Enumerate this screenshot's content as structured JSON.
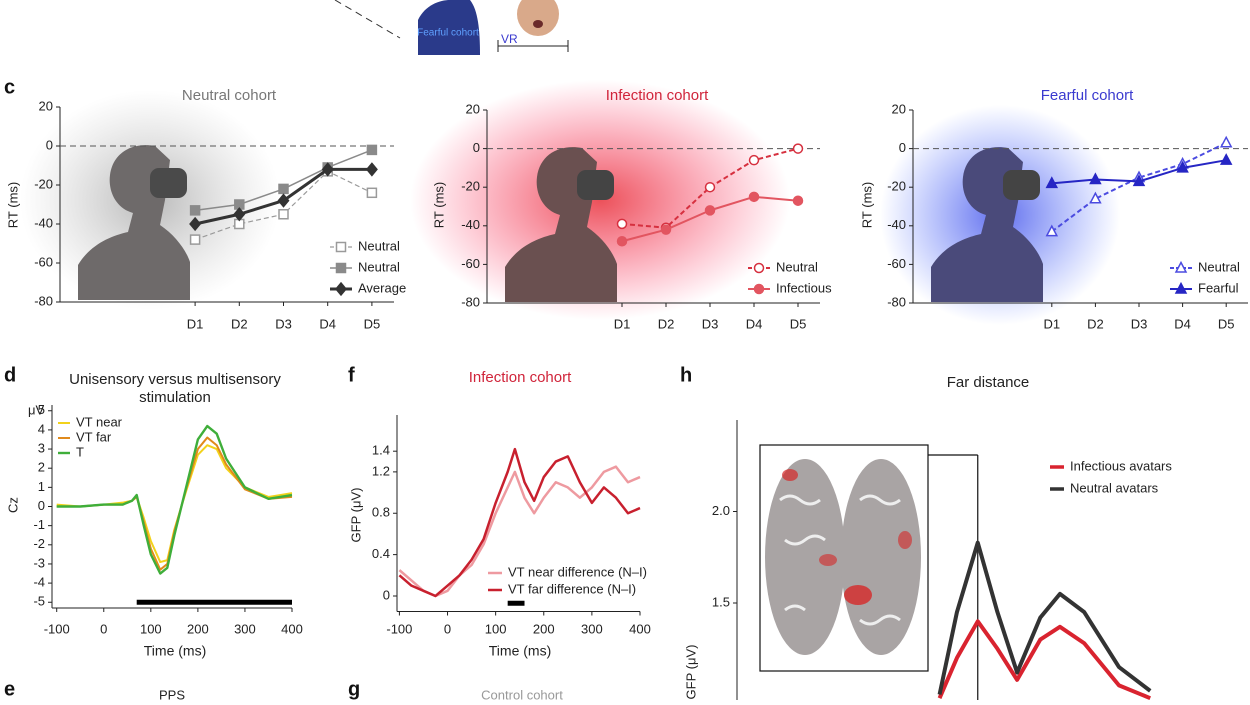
{
  "figure": {
    "letters": [
      "c",
      "d",
      "f",
      "h",
      "e",
      "g"
    ],
    "top_label": "Fearful cohort",
    "vr_label": "VR",
    "bottom_titles": [
      "PPS",
      "Control cohort"
    ]
  },
  "chart_data": [
    {
      "type": "line",
      "title": "Neutral cohort",
      "title_color": "#777777",
      "ylabel": "RT (ms)",
      "categories": [
        "D1",
        "D2",
        "D3",
        "D4",
        "D5"
      ],
      "ylim": [
        -80,
        20
      ],
      "yticks": [
        -80,
        -60,
        -40,
        -20,
        0,
        20
      ],
      "hline": 0,
      "legend": "lower right",
      "series": [
        {
          "name": "Neutral",
          "color": "#9a9a9a",
          "dash": true,
          "marker": "square-open",
          "width": 1.2,
          "values": [
            -48,
            -40,
            -35,
            -13,
            -24
          ]
        },
        {
          "name": "Neutral",
          "color": "#8a8a8a",
          "dash": false,
          "marker": "square",
          "width": 1.5,
          "values": [
            -33,
            -30,
            -22,
            -11,
            -2
          ]
        },
        {
          "name": "Average",
          "color": "#333333",
          "dash": false,
          "marker": "diamond",
          "width": 3,
          "values": [
            -40,
            -35,
            -28,
            -12,
            -12
          ]
        }
      ]
    },
    {
      "type": "line",
      "title": "Infection cohort",
      "title_color": "#d0243a",
      "ylabel": "RT (ms)",
      "categories": [
        "D1",
        "D2",
        "D3",
        "D4",
        "D5"
      ],
      "ylim": [
        -80,
        20
      ],
      "yticks": [
        -80,
        -60,
        -40,
        -20,
        0,
        20
      ],
      "hline": 0,
      "legend": "lower right",
      "series": [
        {
          "name": "Neutral",
          "color": "#d6303f",
          "dash": true,
          "marker": "circle-open",
          "width": 2,
          "values": [
            -39,
            -41,
            -20,
            -6,
            0
          ]
        },
        {
          "name": "Infectious",
          "color": "#e25560",
          "dash": false,
          "marker": "circle",
          "width": 2,
          "values": [
            -48,
            -42,
            -32,
            -25,
            -27
          ]
        }
      ]
    },
    {
      "type": "line",
      "title": "Fearful cohort",
      "title_color": "#3a3acf",
      "ylabel": "RT (ms)",
      "categories": [
        "D1",
        "D2",
        "D3",
        "D4",
        "D5"
      ],
      "ylim": [
        -80,
        20
      ],
      "yticks": [
        -80,
        -60,
        -40,
        -20,
        0,
        20
      ],
      "hline": 0,
      "legend": "lower right",
      "series": [
        {
          "name": "Neutral",
          "color": "#4b4be0",
          "dash": true,
          "marker": "triangle-open",
          "width": 2,
          "values": [
            -43,
            -26,
            -15,
            -8,
            3
          ]
        },
        {
          "name": "Fearful",
          "color": "#2626c4",
          "dash": false,
          "marker": "triangle",
          "width": 2,
          "values": [
            -18,
            -16,
            -17,
            -10,
            -6
          ]
        }
      ]
    },
    {
      "type": "line",
      "title": [
        "Unisensory versus multisensory",
        "stimulation"
      ],
      "title_color": "#222222",
      "ylabel": "Cz",
      "yunit": "μV",
      "xlabel": "Time (ms)",
      "x": [
        -100,
        -50,
        0,
        40,
        60,
        70,
        85,
        100,
        120,
        135,
        150,
        175,
        200,
        220,
        240,
        260,
        300,
        350,
        400
      ],
      "xlim": [
        -110,
        400
      ],
      "xticks": [
        -100,
        0,
        100,
        200,
        300,
        400
      ],
      "ylim": [
        -5.3,
        5.3
      ],
      "yticks": [
        -5,
        -4,
        -3,
        -2,
        -1,
        0,
        1,
        2,
        3,
        4,
        5
      ],
      "legend": "upper left",
      "sig": {
        "x": [
          70,
          400
        ],
        "y": -5
      },
      "series": [
        {
          "name": "VT near",
          "color": "#f2d21b",
          "dash": false,
          "width": 2,
          "values": [
            0.1,
            0,
            0.1,
            0.2,
            0.3,
            0.5,
            -0.6,
            -1.8,
            -2.9,
            -2.8,
            -1.2,
            0.8,
            2.7,
            3.2,
            3,
            2,
            1,
            0.5,
            0.7
          ]
        },
        {
          "name": "VT far",
          "color": "#e08a1c",
          "dash": false,
          "width": 2,
          "values": [
            0,
            0,
            0.1,
            0.1,
            0.3,
            0.5,
            -0.8,
            -2.2,
            -3.3,
            -3,
            -1.3,
            0.9,
            3,
            3.6,
            3.2,
            2.2,
            0.9,
            0.4,
            0.5
          ]
        },
        {
          "name": "T",
          "color": "#3fae3a",
          "dash": false,
          "width": 2.4,
          "values": [
            0,
            0,
            0.1,
            0.1,
            0.3,
            0.6,
            -1,
            -2.5,
            -3.5,
            -3.2,
            -1.5,
            1,
            3.5,
            4.2,
            3.8,
            2.5,
            1,
            0.4,
            0.6
          ]
        }
      ]
    },
    {
      "type": "line",
      "title": "Infection cohort",
      "title_color": "#d0243a",
      "ylabel": "GFP (μV)",
      "xlabel": "Time (ms)",
      "x": [
        -100,
        -75,
        -50,
        -25,
        0,
        25,
        50,
        75,
        100,
        125,
        140,
        160,
        180,
        200,
        225,
        250,
        275,
        300,
        325,
        350,
        375,
        400
      ],
      "xlim": [
        -105,
        400
      ],
      "xticks": [
        -100,
        0,
        100,
        200,
        300,
        400
      ],
      "ylim": [
        -0.15,
        1.75
      ],
      "yticks": [
        0,
        0.4,
        0.8,
        1.2,
        1.4
      ],
      "legend": "lower right",
      "sig": {
        "x": [
          125,
          160
        ],
        "y": -0.07
      },
      "series": [
        {
          "name": "VT near difference (N–I)",
          "color": "#ee9aa0",
          "dash": false,
          "width": 2.5,
          "values": [
            0.25,
            0.15,
            0.05,
            0,
            0.05,
            0.2,
            0.3,
            0.5,
            0.8,
            1.05,
            1.2,
            0.95,
            0.8,
            0.95,
            1.1,
            1.05,
            0.95,
            1.05,
            1.2,
            1.25,
            1.1,
            1.15
          ]
        },
        {
          "name": "VT far difference (N–I)",
          "color": "#c8202e",
          "dash": false,
          "width": 2.5,
          "values": [
            0.2,
            0.1,
            0.05,
            0,
            0.1,
            0.2,
            0.35,
            0.55,
            0.9,
            1.2,
            1.42,
            1.1,
            0.92,
            1.15,
            1.3,
            1.35,
            1.1,
            0.9,
            1.05,
            0.95,
            0.8,
            0.85
          ]
        }
      ]
    },
    {
      "type": "line",
      "title": "Far distance",
      "title_color": "#222222",
      "ylabel": "GFP (μV)",
      "x": [
        175,
        190,
        208,
        225,
        242,
        262,
        279,
        300,
        330,
        357
      ],
      "xlim": [
        0,
        400
      ],
      "ylim": [
        0.97,
        2.5
      ],
      "yticks": [
        1.5,
        {
          "value": 2,
          "label": "2.0"
        }
      ],
      "legend": "upper right",
      "vline": 208,
      "series": [
        {
          "name": "Infectious avatars",
          "color": "#d9232f",
          "dash": false,
          "width": 4,
          "values": [
            0.98,
            1.2,
            1.4,
            1.25,
            1.08,
            1.3,
            1.37,
            1.28,
            1.05,
            0.98
          ]
        },
        {
          "name": "Neutral avatars",
          "color": "#333333",
          "dash": false,
          "width": 4,
          "values": [
            1.0,
            1.45,
            1.83,
            1.45,
            1.12,
            1.42,
            1.55,
            1.45,
            1.15,
            1.02
          ]
        }
      ]
    }
  ]
}
